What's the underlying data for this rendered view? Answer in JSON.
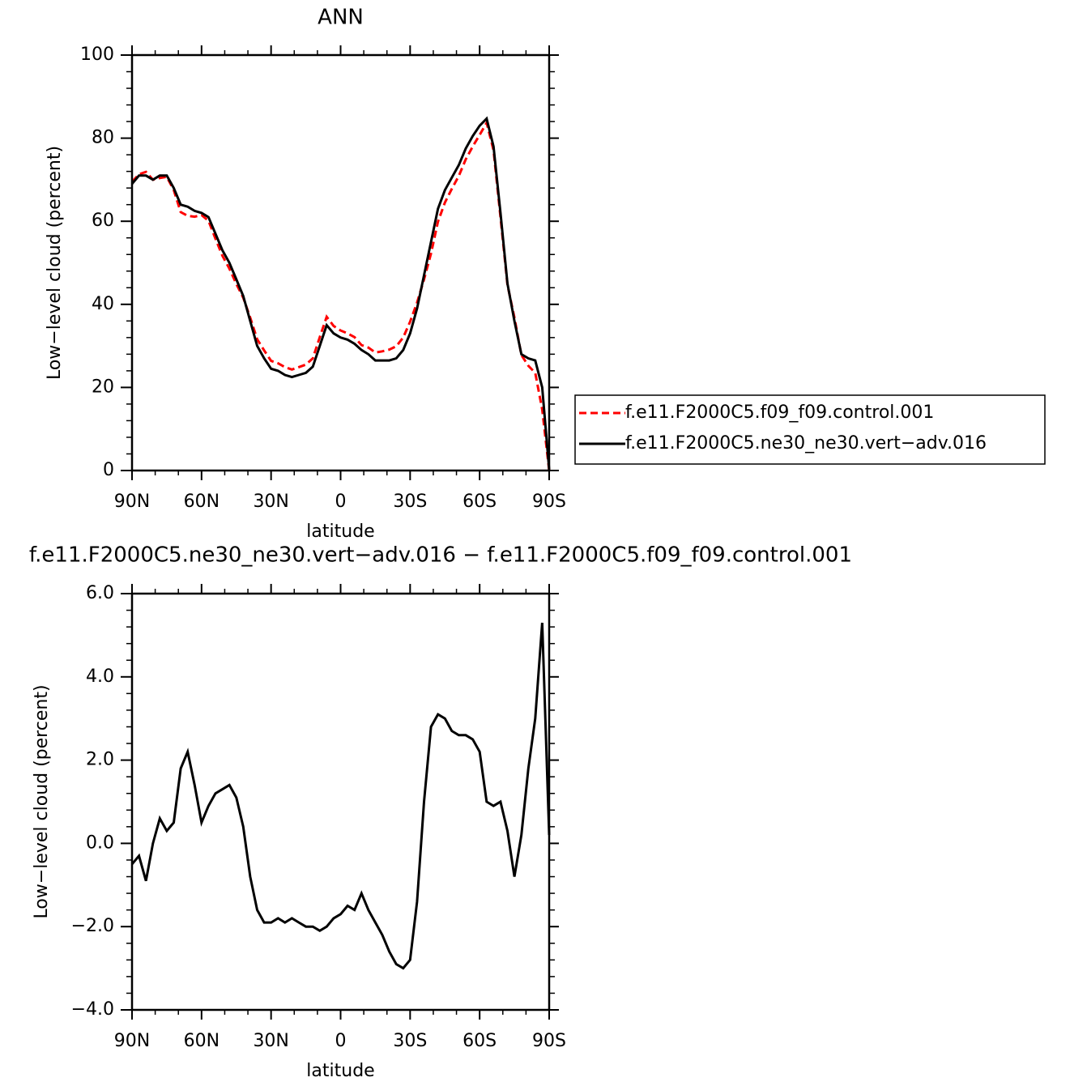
{
  "chart_data": [
    {
      "type": "line",
      "title": "ANN",
      "x_label": "latitude",
      "y_label": "Low−level cloud (percent)",
      "x": [
        90,
        87,
        84,
        81,
        78,
        75,
        72,
        69,
        66,
        63,
        60,
        57,
        54,
        51,
        48,
        45,
        42,
        39,
        36,
        33,
        30,
        27,
        24,
        21,
        18,
        15,
        12,
        9,
        6,
        3,
        0,
        -3,
        -6,
        -9,
        -12,
        -15,
        -18,
        -21,
        -24,
        -27,
        -30,
        -33,
        -36,
        -39,
        -42,
        -45,
        -48,
        -51,
        -54,
        -57,
        -60,
        -63,
        -66,
        -69,
        -72,
        -75,
        -78,
        -81,
        -84,
        -87,
        -90
      ],
      "xlim": [
        90,
        -90
      ],
      "xticks": [
        {
          "value": 90,
          "label": "90N"
        },
        {
          "value": 60,
          "label": "60N"
        },
        {
          "value": 30,
          "label": "30N"
        },
        0,
        {
          "value": -30,
          "label": "30S"
        },
        {
          "value": -60,
          "label": "60S"
        },
        {
          "value": -90,
          "label": "90S"
        }
      ],
      "ylim": [
        0,
        100
      ],
      "yticks": [
        0,
        20,
        40,
        60,
        80,
        100
      ],
      "legend": "right",
      "series": [
        {
          "name": "f.e11.F2000C5.f09_f09.control.001",
          "color": "#ff0000",
          "style": "dashed",
          "values": [
            69.5,
            71.3,
            71.9,
            70,
            70.4,
            70.7,
            67.5,
            62.2,
            61.3,
            61.1,
            61.5,
            60.1,
            55.8,
            51.7,
            48.6,
            44.9,
            41.6,
            36.8,
            31.6,
            28.9,
            26.4,
            25.8,
            24.9,
            24.3,
            24.9,
            25.5,
            27,
            32.1,
            37,
            34.8,
            33.7,
            33,
            32.1,
            30.2,
            29.6,
            28.4,
            28.7,
            29.1,
            29.9,
            32,
            35.8,
            40.4,
            46,
            52.2,
            59.9,
            64.5,
            67.8,
            70.9,
            74.9,
            78,
            80.8,
            83.7,
            77.1,
            61,
            44.7,
            36.8,
            27.8,
            25.2,
            23.5,
            14.7,
            0
          ]
        },
        {
          "name": "f.e11.F2000C5.ne30_ne30.vert−adv.016",
          "color": "#000000",
          "style": "solid",
          "values": [
            69,
            71,
            71,
            70,
            71,
            71,
            68,
            64,
            63.5,
            62.5,
            62,
            61,
            57,
            53,
            50,
            46,
            42,
            36,
            30,
            27,
            24.5,
            24,
            23,
            22.5,
            23,
            23.5,
            25,
            30,
            35,
            33,
            32,
            31.5,
            30.5,
            29,
            28,
            26.5,
            26.5,
            26.5,
            27,
            29,
            33,
            39,
            47,
            55,
            63,
            67.5,
            70.5,
            73.5,
            77.5,
            80.5,
            83,
            84.7,
            78,
            62,
            45,
            36,
            28,
            27,
            26.5,
            20,
            0.2
          ]
        }
      ]
    },
    {
      "type": "line",
      "title": "f.e11.F2000C5.ne30_ne30.vert−adv.016 − f.e11.F2000C5.f09_f09.control.001",
      "x_label": "latitude",
      "y_label": "Low−level cloud (percent)",
      "x": [
        90,
        87,
        84,
        81,
        78,
        75,
        72,
        69,
        66,
        63,
        60,
        57,
        54,
        51,
        48,
        45,
        42,
        39,
        36,
        33,
        30,
        27,
        24,
        21,
        18,
        15,
        12,
        9,
        6,
        3,
        0,
        -3,
        -6,
        -9,
        -12,
        -15,
        -18,
        -21,
        -24,
        -27,
        -30,
        -33,
        -36,
        -39,
        -42,
        -45,
        -48,
        -51,
        -54,
        -57,
        -60,
        -63,
        -66,
        -69,
        -72,
        -75,
        -78,
        -81,
        -84,
        -87,
        -90
      ],
      "xlim": [
        90,
        -90
      ],
      "xticks": [
        {
          "value": 90,
          "label": "90N"
        },
        {
          "value": 60,
          "label": "60N"
        },
        {
          "value": 30,
          "label": "30N"
        },
        0,
        {
          "value": -30,
          "label": "30S"
        },
        {
          "value": -60,
          "label": "60S"
        },
        {
          "value": -90,
          "label": "90S"
        }
      ],
      "ylim": [
        -4,
        6
      ],
      "yticks": [
        {
          "value": -4,
          "label": "−4.0"
        },
        {
          "value": -2,
          "label": "−2.0"
        },
        {
          "value": 0,
          "label": "0.0"
        },
        {
          "value": 2,
          "label": "2.0"
        },
        {
          "value": 4,
          "label": "4.0"
        },
        {
          "value": 6,
          "label": "6.0"
        }
      ],
      "series": [
        {
          "color": "#000000",
          "style": "solid",
          "values": [
            -0.5,
            -0.3,
            -0.9,
            0,
            0.6,
            0.3,
            0.5,
            1.8,
            2.2,
            1.4,
            0.5,
            0.9,
            1.2,
            1.3,
            1.4,
            1.1,
            0.4,
            -0.8,
            -1.6,
            -1.9,
            -1.9,
            -1.8,
            -1.9,
            -1.8,
            -1.9,
            -2,
            -2,
            -2.1,
            -2,
            -1.8,
            -1.7,
            -1.5,
            -1.6,
            -1.2,
            -1.6,
            -1.9,
            -2.2,
            -2.6,
            -2.9,
            -3,
            -2.8,
            -1.4,
            1,
            2.8,
            3.1,
            3,
            2.7,
            2.6,
            2.6,
            2.5,
            2.2,
            1,
            0.9,
            1,
            0.3,
            -0.8,
            0.2,
            1.8,
            3,
            5.3,
            0.2
          ]
        }
      ]
    }
  ]
}
